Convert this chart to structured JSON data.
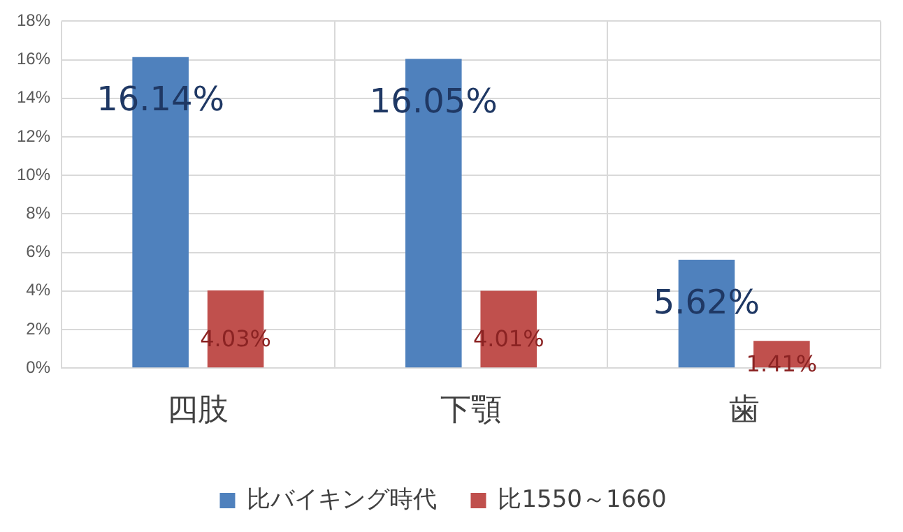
{
  "chart_data": {
    "type": "bar",
    "categories": [
      "四肢",
      "下顎",
      "歯"
    ],
    "series": [
      {
        "name": "比バイキング時代",
        "color": "#4f81bd",
        "values": [
          16.14,
          16.05,
          5.62
        ],
        "value_labels": [
          "16.14%",
          "16.05%",
          "5.62%"
        ]
      },
      {
        "name": "比1550～1660",
        "color": "#c0504d",
        "values": [
          4.03,
          4.01,
          1.41
        ],
        "value_labels": [
          "4.03%",
          "4.01%",
          "1.41%"
        ]
      }
    ],
    "ylim": [
      0,
      18
    ],
    "yticks": [
      {
        "value": 0,
        "label": "0%"
      },
      {
        "value": 2,
        "label": "2%"
      },
      {
        "value": 4,
        "label": "4%"
      },
      {
        "value": 6,
        "label": "6%"
      },
      {
        "value": 8,
        "label": "8%"
      },
      {
        "value": 10,
        "label": "10%"
      },
      {
        "value": 12,
        "label": "12%"
      },
      {
        "value": 14,
        "label": "14%"
      },
      {
        "value": 16,
        "label": "16%"
      },
      {
        "value": 18,
        "label": "18%"
      }
    ],
    "grid": true,
    "legend": "bottom"
  }
}
